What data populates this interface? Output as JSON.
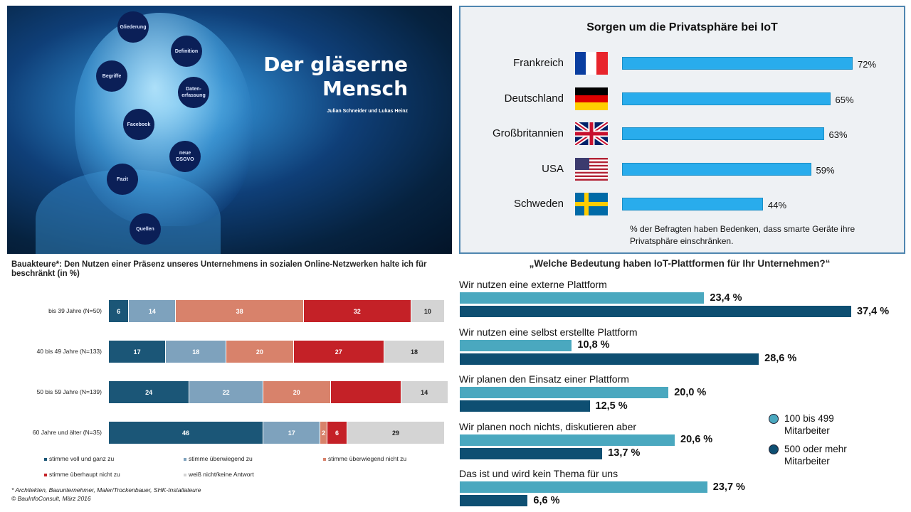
{
  "hero": {
    "title_line1": "Der gläserne",
    "title_line2": "Mensch",
    "subtitle": "Julian Schneider und Lukas Heinz",
    "nodes": [
      "Gliederung",
      "Definition",
      "Begriffe",
      "Daten-\nerfassung",
      "Facebook",
      "neue\nDSGVO",
      "Fazit",
      "Quellen"
    ]
  },
  "chart_data": [
    {
      "type": "bar",
      "orientation": "horizontal",
      "title": "Sorgen um die Privatsphäre bei IoT",
      "categories": [
        "Frankreich",
        "Deutschland",
        "Großbritannien",
        "USA",
        "Schweden"
      ],
      "values": [
        72,
        65,
        63,
        59,
        44
      ],
      "value_labels": [
        "72%",
        "65%",
        "63%",
        "59%",
        "44%"
      ],
      "flags": [
        "france-flag",
        "germany-flag",
        "uk-flag",
        "usa-flag",
        "sweden-flag"
      ],
      "note": "% der Befragten haben Bedenken, dass smarte Geräte ihre Privatsphäre einschränken.",
      "color": "#29acec",
      "xlim": [
        0,
        100
      ]
    },
    {
      "type": "bar",
      "orientation": "horizontal",
      "stacked": true,
      "title": "Bauakteure*: Den Nutzen  einer Präsenz unseres Unternehmens  in sozialen Online-Netzwerken halte ich für beschränkt  (in %)",
      "categories": [
        "bis 39 Jahre (N=50)",
        "40 bis 49 Jahre (N=133)",
        "50 bis 59 Jahre (N=139)",
        "60 Jahre und älter (N=35)"
      ],
      "series": [
        {
          "name": "stimme voll und ganz zu",
          "color": "#1b5677",
          "values": [
            6,
            17,
            24,
            46
          ]
        },
        {
          "name": "stimme überwiegend zu",
          "color": "#7ea2bd",
          "values": [
            14,
            18,
            22,
            17
          ]
        },
        {
          "name": "stimme überwiegend nicht zu",
          "color": "#d8826b",
          "values": [
            38,
            20,
            20,
            2
          ]
        },
        {
          "name": "stimme überhaupt nicht zu",
          "color": "#c42127",
          "values": [
            32,
            27,
            21,
            6
          ]
        },
        {
          "name": "weiß nicht/keine Antwort",
          "color": "#d4d4d4",
          "values": [
            10,
            18,
            14,
            29
          ]
        }
      ],
      "unlabeled": [
        [
          3,
          2
        ]
      ],
      "footnotes": [
        "* Architekten, Bauunternehmer, Maler/Trockenbauer, SHK-Installateure",
        "© BauInfoConsult, März 2016"
      ],
      "legend_placement": "bottom"
    },
    {
      "type": "bar",
      "orientation": "horizontal",
      "title": "„Welche Bedeutung haben IoT-Plattformen für Ihr Unternehmen?“",
      "categories": [
        "Wir nutzen eine externe Plattform",
        "Wir nutzen eine selbst erstellte Plattform",
        "Wir planen den Einsatz einer Plattform",
        "Wir planen noch nichts, diskutieren aber",
        "Das ist und wird kein Thema für uns"
      ],
      "series": [
        {
          "name": "100 bis 499 Mitarbeiter",
          "color": "#4aa8bf",
          "values": [
            23.4,
            10.8,
            20.0,
            20.6,
            23.7
          ],
          "labels": [
            "23,4 %",
            "10,8 %",
            "20,0 %",
            "20,6 %",
            "23,7 %"
          ]
        },
        {
          "name": "500 oder mehr Mitarbeiter",
          "color": "#0e4f72",
          "values": [
            37.4,
            28.6,
            12.5,
            13.7,
            6.6
          ],
          "labels": [
            "37,4 %",
            "28,6 %",
            "12,5 %",
            "13,7 %",
            "6,6 %"
          ]
        }
      ],
      "legend": [
        "100 bis 499\nMitarbeiter",
        "500 oder mehr\nMitarbeiter"
      ],
      "legend_placement": "right"
    }
  ]
}
